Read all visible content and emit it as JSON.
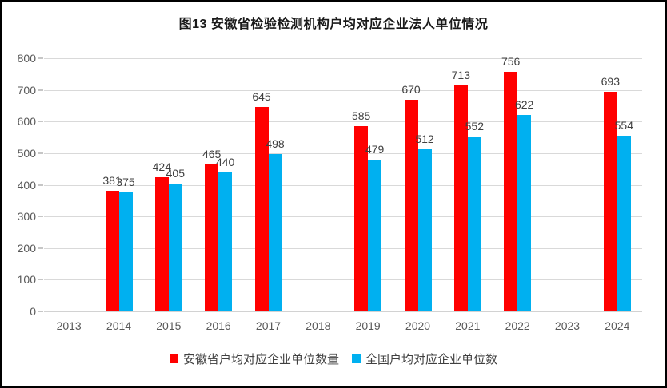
{
  "chart_data": {
    "type": "bar",
    "title": "图13  安徽省检验检测机构户均对应企业法人单位情况",
    "categories": [
      "2013",
      "2014",
      "2015",
      "2016",
      "2017",
      "2018",
      "2019",
      "2020",
      "2021",
      "2022",
      "2023",
      "2024"
    ],
    "series": [
      {
        "name": "安徽省户均对应企业单位数量",
        "color": "#FF0000",
        "values": [
          null,
          381,
          424,
          465,
          645,
          null,
          585,
          670,
          713,
          756,
          null,
          693
        ]
      },
      {
        "name": "全国户均对应企业单位数",
        "color": "#00B0F0",
        "values": [
          null,
          375,
          405,
          440,
          498,
          null,
          479,
          512,
          552,
          622,
          null,
          554
        ]
      }
    ],
    "xlabel": "",
    "ylabel": "",
    "ylim": [
      0,
      800
    ],
    "ytick_step": 100,
    "ytick_labels": [
      "0",
      "100",
      "200",
      "300",
      "400",
      "500",
      "600",
      "700",
      "800"
    ],
    "grid": true,
    "legend_position": "bottom",
    "data_labels": true
  },
  "frame": {
    "background": "#FFFFFF",
    "border_color": "#000000",
    "gridline_color": "#D9D9D9",
    "axis_text_color": "#595959",
    "value_text_color": "#404040"
  }
}
